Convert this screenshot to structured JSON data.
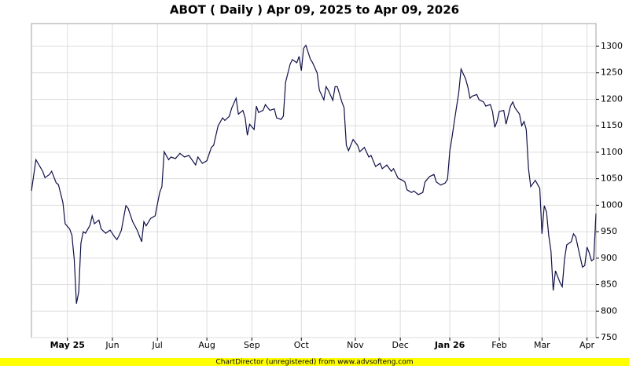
{
  "chart_data": {
    "type": "line",
    "title": "ABOT ( Daily ) Apr 09, 2025 to Apr 09, 2026",
    "footer": "ChartDirector (unregistered) from www.advsofteng.com",
    "x": [
      0,
      2,
      5,
      6,
      8,
      9,
      11,
      12,
      14,
      15,
      17,
      18,
      19,
      20,
      21,
      22,
      23,
      24,
      26,
      27,
      28,
      30,
      31,
      33,
      35,
      37,
      38,
      39,
      40,
      42,
      43,
      45,
      47,
      49,
      50,
      51,
      53,
      55,
      57,
      58,
      59,
      61,
      62,
      64,
      66,
      68,
      70,
      73,
      74,
      76,
      78,
      80,
      81,
      83,
      85,
      86,
      88,
      89,
      91,
      92,
      94,
      95,
      96,
      97,
      99,
      100,
      101,
      103,
      104,
      106,
      108,
      109,
      111,
      112,
      113,
      115,
      116,
      118,
      119,
      120,
      121,
      122,
      124,
      125,
      127,
      128,
      130,
      131,
      132,
      134,
      135,
      136,
      138,
      139,
      140,
      141,
      143,
      145,
      146,
      148,
      150,
      151,
      153,
      155,
      156,
      158,
      160,
      161,
      163,
      165,
      166,
      167,
      169,
      170,
      172,
      174,
      175,
      177,
      179,
      180,
      182,
      184,
      185,
      186,
      187,
      188,
      190,
      191,
      193,
      194,
      195,
      196,
      198,
      199,
      201,
      202,
      204,
      205,
      206,
      207,
      208,
      210,
      211,
      213,
      214,
      215,
      217,
      218,
      219,
      220,
      221,
      222,
      224,
      226,
      227,
      228,
      229,
      230,
      231,
      232,
      233,
      235,
      236,
      237,
      238,
      240,
      241,
      242,
      243,
      245,
      246,
      247,
      248,
      249,
      250,
      251
    ],
    "series": [
      {
        "color": "#101048",
        "values": [
          1027,
          1086,
          1064,
          1052,
          1058,
          1064,
          1042,
          1039,
          1005,
          965,
          955,
          943,
          898,
          814,
          836,
          928,
          950,
          947,
          962,
          980,
          965,
          972,
          955,
          947,
          953,
          940,
          935,
          943,
          953,
          999,
          994,
          969,
          953,
          931,
          969,
          961,
          975,
          980,
          1024,
          1035,
          1101,
          1086,
          1091,
          1088,
          1098,
          1091,
          1094,
          1076,
          1091,
          1079,
          1084,
          1109,
          1113,
          1150,
          1165,
          1160,
          1168,
          1183,
          1202,
          1172,
          1179,
          1165,
          1132,
          1153,
          1143,
          1187,
          1175,
          1179,
          1190,
          1179,
          1182,
          1165,
          1162,
          1168,
          1232,
          1266,
          1275,
          1269,
          1281,
          1254,
          1296,
          1302,
          1276,
          1269,
          1250,
          1217,
          1199,
          1224,
          1217,
          1198,
          1224,
          1224,
          1195,
          1184,
          1113,
          1103,
          1124,
          1113,
          1101,
          1109,
          1091,
          1094,
          1073,
          1079,
          1069,
          1076,
          1064,
          1069,
          1051,
          1047,
          1044,
          1029,
          1024,
          1027,
          1020,
          1024,
          1044,
          1054,
          1058,
          1044,
          1038,
          1042,
          1049,
          1103,
          1128,
          1158,
          1213,
          1257,
          1239,
          1224,
          1202,
          1206,
          1209,
          1199,
          1195,
          1187,
          1190,
          1177,
          1147,
          1158,
          1177,
          1179,
          1153,
          1187,
          1195,
          1184,
          1172,
          1150,
          1158,
          1143,
          1069,
          1035,
          1047,
          1032,
          946,
          999,
          987,
          943,
          913,
          839,
          876,
          854,
          846,
          898,
          925,
          931,
          946,
          940,
          921,
          883,
          886,
          921,
          910,
          895,
          898,
          984
        ]
      }
    ],
    "xlim": [
      0,
      251
    ],
    "xticks": [
      {
        "value": 16,
        "label": "May 25"
      },
      {
        "value": 36,
        "label": "Jun"
      },
      {
        "value": 56,
        "label": "Jul"
      },
      {
        "value": 78,
        "label": "Aug"
      },
      {
        "value": 98,
        "label": "Sep"
      },
      {
        "value": 120,
        "label": "Oct"
      },
      {
        "value": 144,
        "label": "Nov"
      },
      {
        "value": 164,
        "label": "Dec"
      },
      {
        "value": 186,
        "label": "Jan 26"
      },
      {
        "value": 208,
        "label": "Feb"
      },
      {
        "value": 227,
        "label": "Mar"
      },
      {
        "value": 247,
        "label": "Apr"
      }
    ],
    "ylim": [
      750,
      1343
    ],
    "yticks": [
      750,
      800,
      850,
      900,
      950,
      1000,
      1050,
      1100,
      1150,
      1200,
      1250,
      1300
    ],
    "grid": true
  }
}
